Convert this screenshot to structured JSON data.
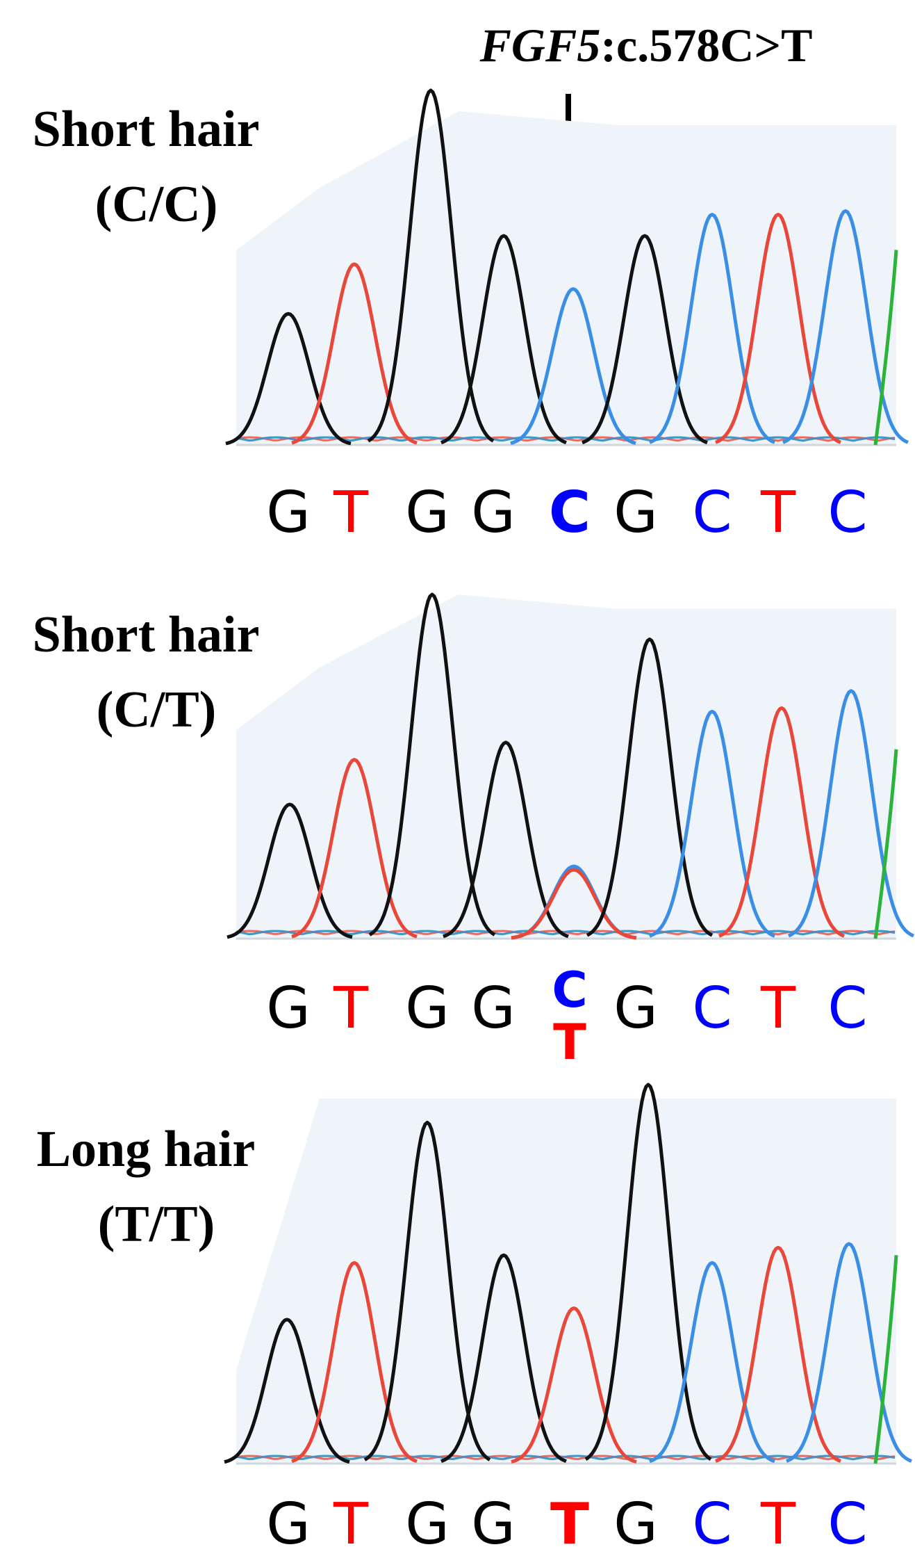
{
  "mutation": {
    "gene": "FGF5",
    "change": ":c.578C>T"
  },
  "panels": [
    {
      "label": "Short hair",
      "genotype": "(C/C)",
      "bases": [
        "G",
        "T",
        "G",
        "G",
        "C",
        "G",
        "C",
        "T",
        "C"
      ],
      "variant": [
        "C"
      ],
      "peaks": [
        {
          "base": "G",
          "color": "black",
          "height": 0.37
        },
        {
          "base": "T",
          "color": "red",
          "height": 0.51
        },
        {
          "base": "G",
          "color": "black",
          "height": 1.0
        },
        {
          "base": "G",
          "color": "black",
          "height": 0.59
        },
        {
          "base": "C",
          "color": "blue",
          "height": 0.44
        },
        {
          "base": "G",
          "color": "black",
          "height": 0.59
        },
        {
          "base": "C",
          "color": "blue",
          "height": 0.65
        },
        {
          "base": "T",
          "color": "red",
          "height": 0.65
        },
        {
          "base": "C",
          "color": "blue",
          "height": 0.66
        }
      ]
    },
    {
      "label": "Short hair",
      "genotype": "(C/T)",
      "bases": [
        "G",
        "T",
        "G",
        "G",
        "C/T",
        "G",
        "C",
        "T",
        "C"
      ],
      "variant": [
        "C",
        "T"
      ],
      "peaks": [
        {
          "base": "G",
          "color": "black",
          "height": 0.39
        },
        {
          "base": "T",
          "color": "red",
          "height": 0.52
        },
        {
          "base": "G",
          "color": "black",
          "height": 1.0
        },
        {
          "base": "G",
          "color": "black",
          "height": 0.57
        },
        {
          "base": "C",
          "color": "blue",
          "height": 0.21
        },
        {
          "base": "T",
          "color": "red",
          "height": 0.2
        },
        {
          "base": "G",
          "color": "black",
          "height": 0.87
        },
        {
          "base": "C",
          "color": "blue",
          "height": 0.66
        },
        {
          "base": "T",
          "color": "red",
          "height": 0.67
        },
        {
          "base": "C",
          "color": "blue",
          "height": 0.72
        }
      ]
    },
    {
      "label": "Long hair",
      "genotype": "(T/T)",
      "bases": [
        "G",
        "T",
        "G",
        "G",
        "T",
        "G",
        "C",
        "T",
        "C"
      ],
      "variant": [
        "T"
      ],
      "peaks": [
        {
          "base": "G",
          "color": "black",
          "height": 0.38
        },
        {
          "base": "T",
          "color": "red",
          "height": 0.53
        },
        {
          "base": "G",
          "color": "black",
          "height": 0.9
        },
        {
          "base": "G",
          "color": "black",
          "height": 0.55
        },
        {
          "base": "T",
          "color": "red",
          "height": 0.41
        },
        {
          "base": "G",
          "color": "black",
          "height": 1.0
        },
        {
          "base": "C",
          "color": "blue",
          "height": 0.53
        },
        {
          "base": "T",
          "color": "red",
          "height": 0.57
        },
        {
          "base": "C",
          "color": "blue",
          "height": 0.58
        }
      ]
    }
  ],
  "colors": {
    "A": "#00a000",
    "G": "#000000",
    "C": "#0000ff",
    "T": "#ff0000",
    "trace_black": "#111111",
    "trace_red": "#e8473a",
    "trace_blue": "#3a8ee6",
    "trace_green": "#2bb33a",
    "background_tint": "#eef4fa"
  }
}
